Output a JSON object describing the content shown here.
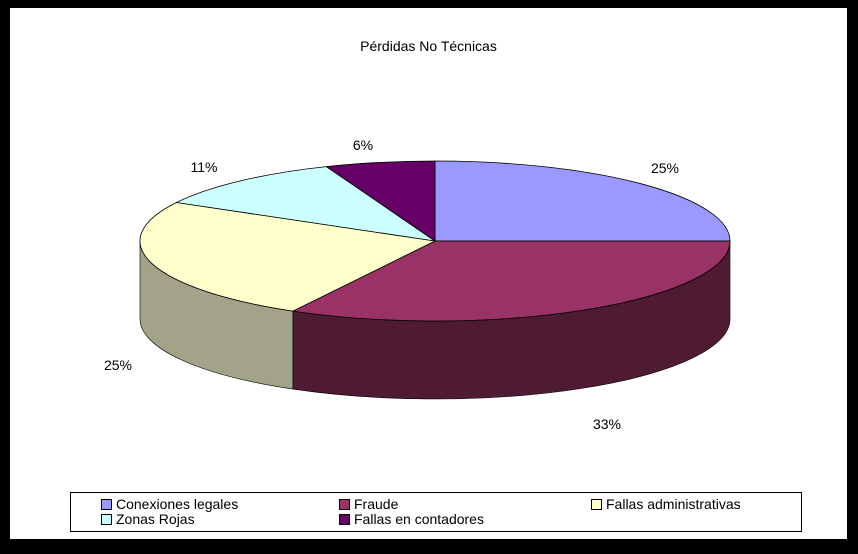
{
  "chart_data": {
    "type": "pie",
    "title": "Pérdidas No Técnicas",
    "series": [
      {
        "name": "Conexiones legales",
        "value": 25,
        "label": "25%",
        "color": "#9999FF",
        "side_color": "#5A5AAA"
      },
      {
        "name": "Fraude",
        "value": 33,
        "label": "33%",
        "color": "#993366",
        "side_color": "#4E1B33"
      },
      {
        "name": "Fallas administrativas",
        "value": 25,
        "label": "25%",
        "color": "#FFFFCC",
        "side_color": "#A3A38A"
      },
      {
        "name": "Zonas Rojas",
        "value": 11,
        "label": "11%",
        "color": "#CCFFFF",
        "side_color": "#8AAAAA"
      },
      {
        "name": "Fallas en contadores",
        "value": 6,
        "label": "6%",
        "color": "#660066",
        "side_color": "#330033"
      }
    ],
    "legend_position": "bottom"
  }
}
